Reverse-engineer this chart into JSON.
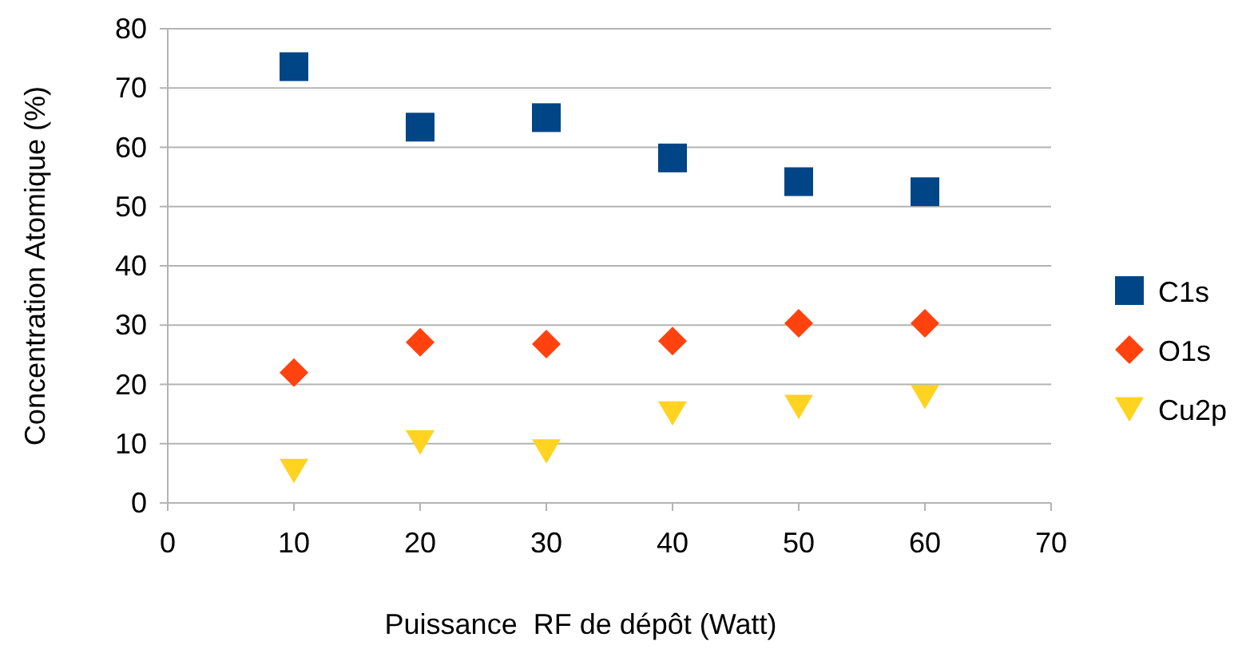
{
  "chart_data": {
    "type": "scatter",
    "xlabel": "Puissance  RF de dépôt (Watt)",
    "ylabel": "Concentration Atomique (%)",
    "x": [
      10,
      20,
      30,
      40,
      50,
      60
    ],
    "series": [
      {
        "name": "C1s",
        "color": "#004586",
        "marker": "square",
        "values": [
          73.6,
          63.4,
          65,
          58.2,
          54.2,
          52.5
        ]
      },
      {
        "name": "O1s",
        "color": "#ff420e",
        "marker": "diamond",
        "values": [
          22,
          27.1,
          26.8,
          27.3,
          30.3,
          30.3
        ]
      },
      {
        "name": "Cu2p",
        "color": "#ffd320",
        "marker": "triangle",
        "values": [
          5.5,
          10.3,
          8.8,
          15.2,
          16.3,
          18
        ]
      }
    ],
    "xlim": [
      0,
      70
    ],
    "xticks": [
      0,
      10,
      20,
      30,
      40,
      50,
      60,
      70
    ],
    "ylim": [
      0,
      80
    ],
    "yticks": [
      0,
      10,
      20,
      30,
      40,
      50,
      60,
      70,
      80
    ],
    "grid": "y",
    "legend": "right"
  }
}
